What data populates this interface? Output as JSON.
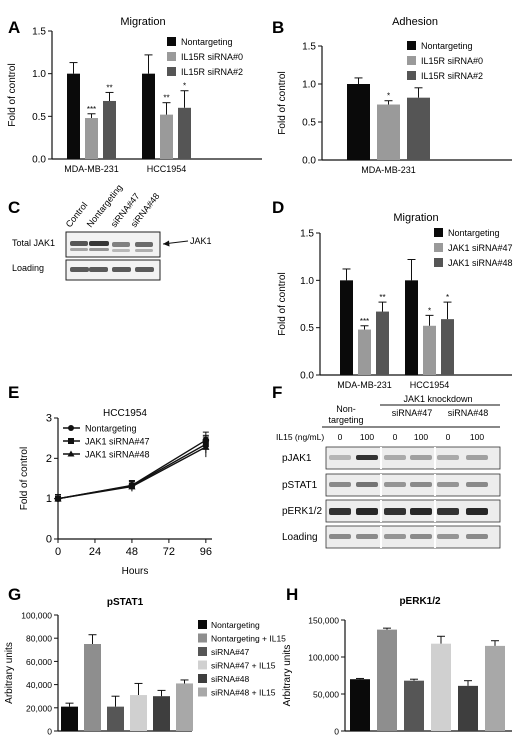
{
  "panels": {
    "A": "A",
    "B": "B",
    "C": "C",
    "D": "D",
    "E": "E",
    "F": "F",
    "G": "G",
    "H": "H"
  },
  "chart_data": [
    {
      "id": "A",
      "type": "bar",
      "title": "Migration",
      "ylabel": "Fold of control",
      "ylim": [
        0,
        1.5
      ],
      "yticks": [
        "0.0",
        "0.5",
        "1.0",
        "1.5"
      ],
      "categories": [
        "MDA-MB-231",
        "HCC1954"
      ],
      "series": [
        {
          "name": "Nontargeting",
          "color": "#0a0a0a",
          "values": [
            1.0,
            1.0
          ],
          "errors": [
            0.13,
            0.22
          ],
          "sig": [
            "",
            ""
          ]
        },
        {
          "name": "IL15R siRNA#0",
          "color": "#9a9a9a",
          "values": [
            0.48,
            0.52
          ],
          "errors": [
            0.05,
            0.14
          ],
          "sig": [
            "***",
            "**"
          ]
        },
        {
          "name": "IL15R siRNA#2",
          "color": "#555555",
          "values": [
            0.68,
            0.6
          ],
          "errors": [
            0.1,
            0.2
          ],
          "sig": [
            "**",
            "*"
          ]
        }
      ]
    },
    {
      "id": "B",
      "type": "bar",
      "title": "Adhesion",
      "ylabel": "Fold of control",
      "ylim": [
        0,
        1.5
      ],
      "yticks": [
        "0.0",
        "0.5",
        "1.0",
        "1.5"
      ],
      "categories": [
        "MDA-MB-231"
      ],
      "series": [
        {
          "name": "Nontargeting",
          "color": "#0a0a0a",
          "values": [
            1.0
          ],
          "errors": [
            0.08
          ],
          "sig": [
            ""
          ]
        },
        {
          "name": "IL15R siRNA#0",
          "color": "#9a9a9a",
          "values": [
            0.73
          ],
          "errors": [
            0.05
          ],
          "sig": [
            "*"
          ]
        },
        {
          "name": "IL15R siRNA#2",
          "color": "#555555",
          "values": [
            0.82
          ],
          "errors": [
            0.13
          ],
          "sig": [
            ""
          ]
        }
      ]
    },
    {
      "id": "D",
      "type": "bar",
      "title": "Migration",
      "ylabel": "Fold of control",
      "ylim": [
        0,
        1.5
      ],
      "yticks": [
        "0.0",
        "0.5",
        "1.0",
        "1.5"
      ],
      "categories": [
        "MDA-MB-231",
        "HCC1954"
      ],
      "series": [
        {
          "name": "Nontargeting",
          "color": "#0a0a0a",
          "values": [
            1.0,
            1.0
          ],
          "errors": [
            0.12,
            0.22
          ],
          "sig": [
            "",
            ""
          ]
        },
        {
          "name": "JAK1 siRNA#47",
          "color": "#9a9a9a",
          "values": [
            0.48,
            0.52
          ],
          "errors": [
            0.04,
            0.11
          ],
          "sig": [
            "***",
            "*"
          ]
        },
        {
          "name": "JAK1 siRNA#48",
          "color": "#555555",
          "values": [
            0.67,
            0.59
          ],
          "errors": [
            0.1,
            0.18
          ],
          "sig": [
            "**",
            "*"
          ]
        }
      ]
    },
    {
      "id": "E",
      "type": "line",
      "title": "HCC1954",
      "xlabel": "Hours",
      "ylabel": "Fold of control",
      "xlim": [
        0,
        100
      ],
      "ylim": [
        0,
        3
      ],
      "xticks": [
        "0",
        "24",
        "48",
        "72",
        "96"
      ],
      "yticks": [
        "0",
        "1",
        "2",
        "3"
      ],
      "x": [
        0,
        48,
        96
      ],
      "series": [
        {
          "name": "Nontargeting",
          "marker": "circle",
          "values": [
            1.0,
            1.33,
            2.45
          ],
          "errors": [
            0.1,
            0.12,
            0.2
          ]
        },
        {
          "name": "JAK1 siRNA#47",
          "marker": "square",
          "values": [
            1.0,
            1.32,
            2.35
          ],
          "errors": [
            0.1,
            0.12,
            0.22
          ]
        },
        {
          "name": "JAK1 siRNA#48",
          "marker": "triangle",
          "values": [
            1.0,
            1.3,
            2.28
          ],
          "errors": [
            0.1,
            0.12,
            0.25
          ]
        }
      ]
    },
    {
      "id": "G",
      "type": "bar",
      "title": "pSTAT1",
      "ylabel": "Arbitrary units",
      "ylim": [
        0,
        100000
      ],
      "yticks": [
        "0",
        "20,000",
        "40,000",
        "60,000",
        "80,000",
        "100,000"
      ],
      "categories": [
        "Nontargeting",
        "Nontargeting + IL15",
        "siRNA#47",
        "siRNA#47 + IL15",
        "siRNA#48",
        "siRNA#48 + IL15"
      ],
      "colors": [
        "#0a0a0a",
        "#8e8e8e",
        "#565656",
        "#d0d0d0",
        "#3e3e3e",
        "#a8a8a8"
      ],
      "values": [
        21000,
        75000,
        21000,
        31000,
        30000,
        41000
      ],
      "errors": [
        3000,
        8000,
        9000,
        10000,
        5000,
        3000
      ]
    },
    {
      "id": "H",
      "type": "bar",
      "title": "pERK1/2",
      "ylabel": "Arbitrary units",
      "ylim": [
        0,
        150000
      ],
      "yticks": [
        "0",
        "50,000",
        "100,000",
        "150,000"
      ],
      "categories": [
        "Nontargeting",
        "Nontargeting + IL15",
        "siRNA#47",
        "siRNA#47 + IL15",
        "siRNA#48",
        "siRNA#48 + IL15"
      ],
      "colors": [
        "#0a0a0a",
        "#8e8e8e",
        "#565656",
        "#d0d0d0",
        "#3e3e3e",
        "#a8a8a8"
      ],
      "values": [
        70000,
        137000,
        68000,
        118000,
        61000,
        115000
      ],
      "errors": [
        1000,
        2000,
        2000,
        10000,
        7000,
        7000
      ]
    }
  ],
  "blot_c": {
    "lanes": [
      "Control",
      "Nontargeting",
      "siRNA#47",
      "siRNA#48"
    ],
    "rows": [
      "Total JAK1",
      "Loading"
    ],
    "arrow_label": "JAK1"
  },
  "blot_f": {
    "header_nontargeting": [
      "Non-",
      "targeting"
    ],
    "header_knockdown": "JAK1 knockdown",
    "group_labels": [
      "siRNA#47",
      "siRNA#48"
    ],
    "il15_label": "IL15 (ng/mL)",
    "il15_values": [
      "0",
      "100",
      "0",
      "100",
      "0",
      "100"
    ],
    "rows": [
      "pJAK1",
      "pSTAT1",
      "pERK1/2",
      "Loading"
    ]
  }
}
